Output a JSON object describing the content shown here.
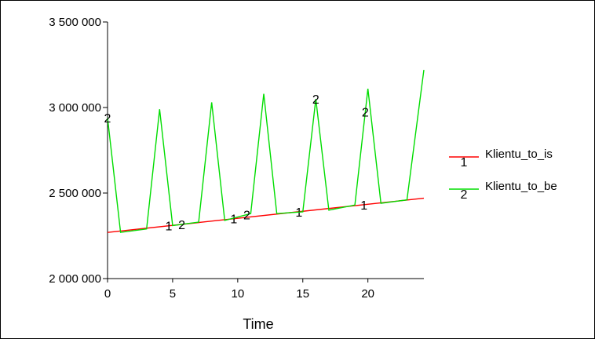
{
  "chart_data": {
    "type": "line",
    "xlabel": "Time",
    "ylabel": "",
    "xlim": [
      0,
      24.3
    ],
    "ylim": [
      2000000,
      3500000
    ],
    "x_ticks": [
      0,
      5,
      10,
      15,
      20
    ],
    "x_tick_labels": [
      "0",
      "5",
      "10",
      "15",
      "20"
    ],
    "y_ticks": [
      2000000,
      2500000,
      3000000,
      3500000
    ],
    "y_tick_labels": [
      "2 000 000",
      "2 500 000",
      "3 000 000",
      "3 500 000"
    ],
    "grid": false,
    "legend_position": "right",
    "series": [
      {
        "name": "Klientu_to_is",
        "color": "#ff0000",
        "marker": "1",
        "x": [
          0,
          24.3
        ],
        "y": [
          2270000,
          2470000
        ],
        "marker_x": [
          4.7,
          9.7,
          14.7,
          19.7
        ]
      },
      {
        "name": "Klientu_to_be",
        "color": "#00dd00",
        "marker": "2",
        "x": [
          0,
          1,
          3,
          4,
          5,
          7,
          8,
          9,
          11,
          12,
          13,
          15,
          16,
          17,
          19,
          20,
          21,
          23,
          24.3
        ],
        "y": [
          2940000,
          2270000,
          2290000,
          2990000,
          2310000,
          2330000,
          3030000,
          2340000,
          2380000,
          3080000,
          2380000,
          2390000,
          3050000,
          2400000,
          2430000,
          3110000,
          2440000,
          2460000,
          3220000
        ],
        "marker_x": [
          0,
          5.7,
          10.7,
          16,
          19.8
        ]
      }
    ]
  }
}
